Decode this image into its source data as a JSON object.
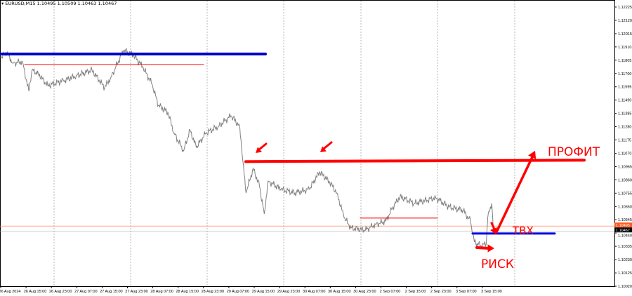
{
  "header": {
    "symbol": "EURUSD,M15",
    "ohlc": "1.10495 1.10509 1.10463 1.10467"
  },
  "chart_data": {
    "type": "line",
    "title": "",
    "ylim": [
      1.1002,
      1.1228
    ],
    "grid": "vertical dotted",
    "price_ticks": [
      "1.12225",
      "1.12120",
      "1.12015",
      "1.11910",
      "1.11805",
      "1.11700",
      "1.11595",
      "1.11490",
      "1.11385",
      "1.11280",
      "1.11175",
      "1.11070",
      "1.10965",
      "1.10860",
      "1.10755",
      "1.10650",
      "1.10545",
      "1.10440",
      "1.10335",
      "1.10230",
      "1.10125",
      "1.10020"
    ],
    "time_ticks": [
      "26 Aug 2024",
      "26 Aug 15:00",
      "26 Aug 23:00",
      "27 Aug 07:00",
      "27 Aug 15:00",
      "27 Aug 23:00",
      "28 Aug 07:00",
      "28 Aug 15:00",
      "28 Aug 23:00",
      "29 Aug 07:00",
      "29 Aug 15:00",
      "29 Aug 23:00",
      "30 Aug 07:00",
      "30 Aug 15:00",
      "30 Aug 23:00",
      "2 Sep 07:00",
      "2 Sep 15:00",
      "2 Sep 23:00",
      "3 Sep 07:00",
      "3 Sep 15:00"
    ],
    "ask_label": "1.10495",
    "bid_label": "1.10467",
    "series_color": "#808080",
    "points": [
      [
        "26 Aug 04:00",
        1.11826
      ],
      [
        "26 Aug 06:00",
        1.11865
      ],
      [
        "26 Aug 08:00",
        1.11782
      ],
      [
        "26 Aug 11:00",
        1.11793
      ],
      [
        "26 Aug 13:00",
        1.1156
      ],
      [
        "26 Aug 14:00",
        1.11726
      ],
      [
        "26 Aug 16:00",
        1.11699
      ],
      [
        "26 Aug 19:00",
        1.11605
      ],
      [
        "27 Aug 00:00",
        1.11643
      ],
      [
        "27 Aug 04:00",
        1.11682
      ],
      [
        "27 Aug 09:00",
        1.11726
      ],
      [
        "27 Aug 13:00",
        1.11588
      ],
      [
        "27 Aug 15:00",
        1.11671
      ],
      [
        "27 Aug 19:00",
        1.11882
      ],
      [
        "27 Aug 22:00",
        1.11848
      ],
      [
        "28 Aug 01:00",
        1.11754
      ],
      [
        "28 Aug 04:00",
        1.11616
      ],
      [
        "28 Aug 06:00",
        1.11449
      ],
      [
        "28 Aug 09:00",
        1.11394
      ],
      [
        "28 Aug 11:00",
        1.11228
      ],
      [
        "28 Aug 14:00",
        1.11089
      ],
      [
        "28 Aug 16:00",
        1.11255
      ],
      [
        "28 Aug 18:00",
        1.11117
      ],
      [
        "28 Aug 21:00",
        1.11228
      ],
      [
        "29 Aug 01:00",
        1.11283
      ],
      [
        "29 Aug 05:00",
        1.11366
      ],
      [
        "29 Aug 07:45",
        1.11283
      ],
      [
        "29 Aug 08:45",
        1.11006
      ],
      [
        "29 Aug 09:45",
        1.10757
      ],
      [
        "29 Aug 12:00",
        1.10951
      ],
      [
        "29 Aug 14:00",
        1.10812
      ],
      [
        "29 Aug 15:30",
        1.10591
      ],
      [
        "29 Aug 16:45",
        1.10851
      ],
      [
        "29 Aug 20:45",
        1.10785
      ],
      [
        "30 Aug 01:15",
        1.10757
      ],
      [
        "30 Aug 05:45",
        1.10785
      ],
      [
        "30 Aug 09:00",
        1.10923
      ],
      [
        "30 Aug 12:15",
        1.1084
      ],
      [
        "30 Aug 14:30",
        1.10757
      ],
      [
        "30 Aug 16:45",
        1.10563
      ],
      [
        "30 Aug 19:00",
        1.1048
      ],
      [
        "30 Aug 23:30",
        1.10463
      ],
      [
        "2 Sep 02:45",
        1.10508
      ],
      [
        "2 Sep 06:00",
        1.10535
      ],
      [
        "2 Sep 08:15",
        1.10646
      ],
      [
        "2 Sep 10:30",
        1.10729
      ],
      [
        "2 Sep 15:00",
        1.10674
      ],
      [
        "2 Sep 21:45",
        1.10718
      ],
      [
        "3 Sep 02:00",
        1.10646
      ],
      [
        "3 Sep 06:30",
        1.10618
      ],
      [
        "3 Sep 08:45",
        1.10535
      ],
      [
        "3 Sep 10:00",
        1.10369
      ],
      [
        "3 Sep 12:00",
        1.10341
      ],
      [
        "3 Sep 13:45",
        1.10352
      ],
      [
        "3 Sep 14:15",
        1.10563
      ],
      [
        "3 Sep 15:30",
        1.10674
      ],
      [
        "3 Sep 16:00",
        1.10467
      ]
    ],
    "annotations": {
      "resistance_level": {
        "price": 1.11854,
        "color": "#0000c8"
      },
      "upper_thin_level": {
        "price": 1.11771,
        "color": "#ff0000"
      },
      "profit_level": {
        "price": 1.1101,
        "color": "#ff0000"
      },
      "mid_thin_level": {
        "price": 1.10558,
        "color": "#ff0000"
      },
      "entry_level": {
        "price": 1.10436,
        "color": "#0000e0"
      },
      "profit_label": "ПРОФИТ",
      "entry_label": "ТВХ",
      "risk_label": "РИСК"
    }
  }
}
